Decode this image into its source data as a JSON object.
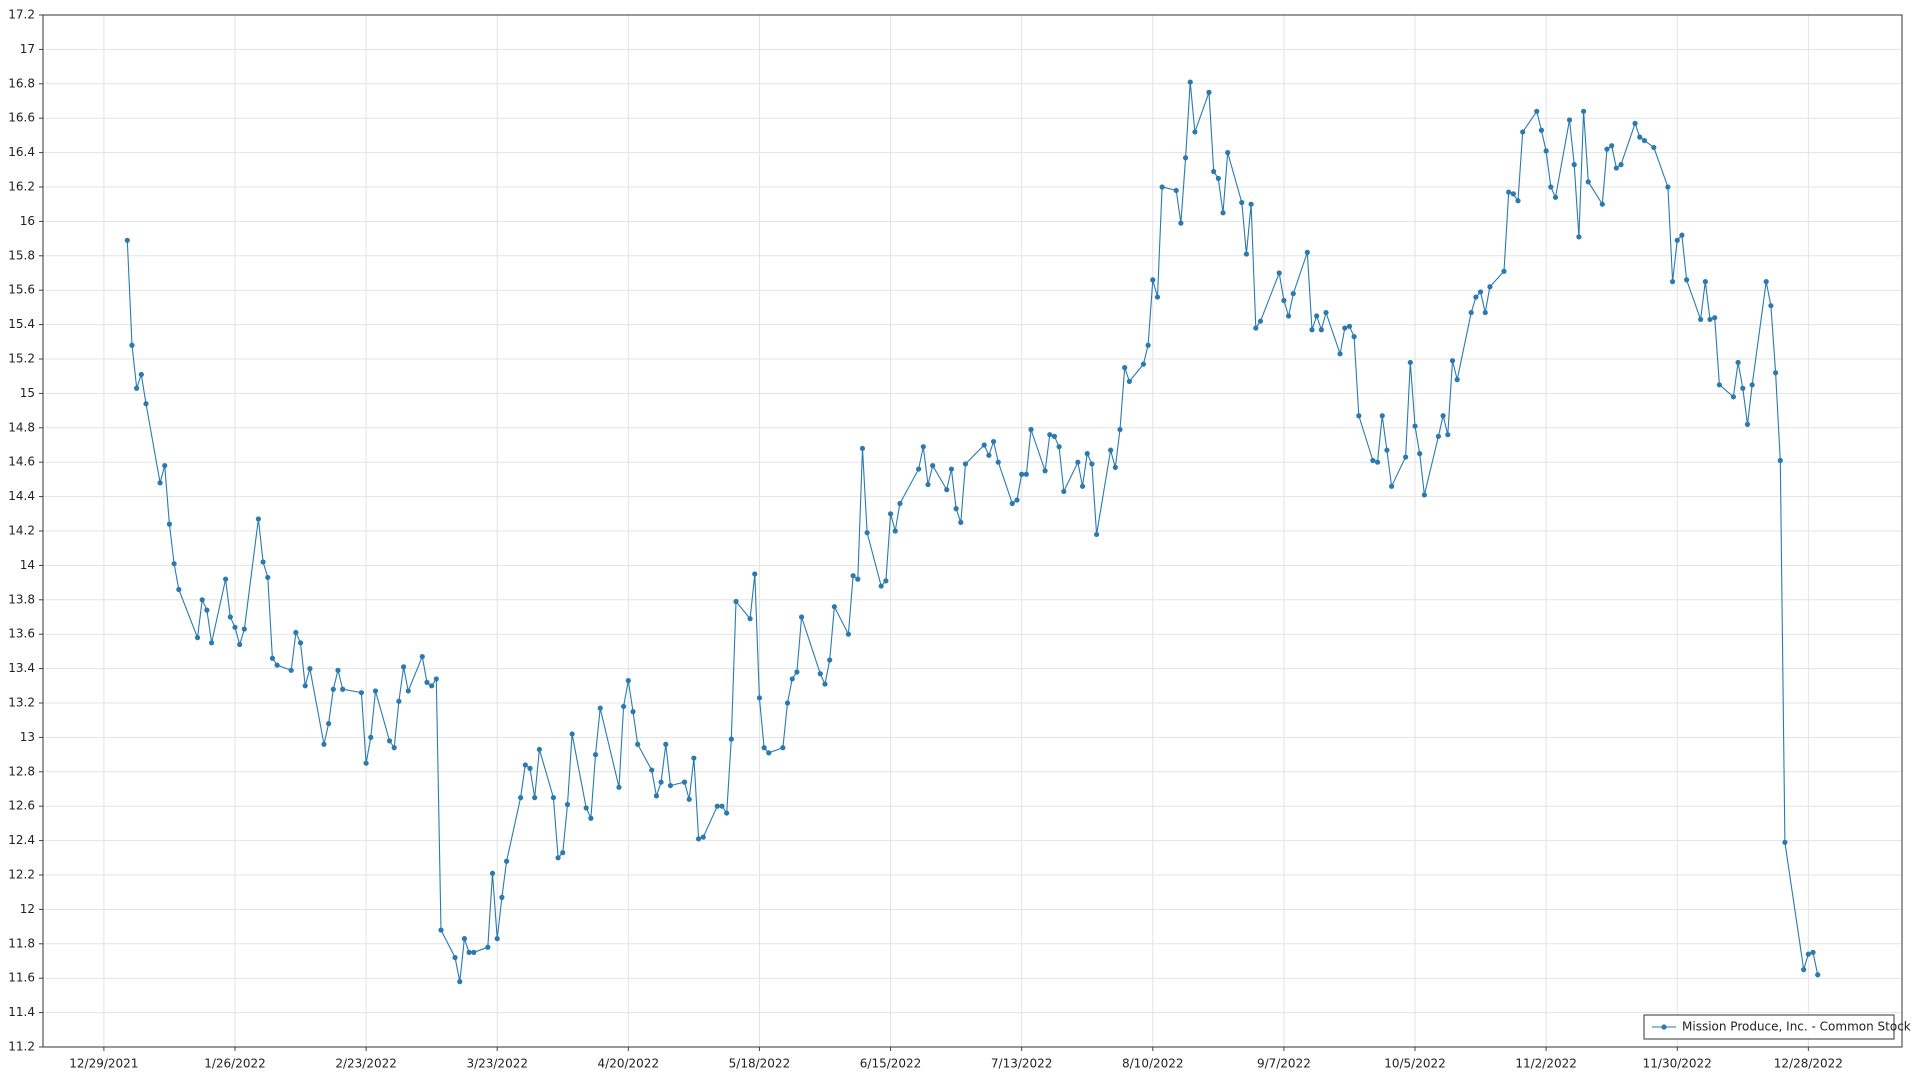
{
  "chart_data": {
    "type": "line",
    "x": [
      "1/3/2022",
      "1/4/2022",
      "1/5/2022",
      "1/6/2022",
      "1/7/2022",
      "1/10/2022",
      "1/11/2022",
      "1/12/2022",
      "1/13/2022",
      "1/14/2022",
      "1/18/2022",
      "1/19/2022",
      "1/20/2022",
      "1/21/2022",
      "1/24/2022",
      "1/25/2022",
      "1/26/2022",
      "1/27/2022",
      "1/28/2022",
      "1/31/2022",
      "2/1/2022",
      "2/2/2022",
      "2/3/2022",
      "2/4/2022",
      "2/7/2022",
      "2/8/2022",
      "2/9/2022",
      "2/10/2022",
      "2/11/2022",
      "2/14/2022",
      "2/15/2022",
      "2/16/2022",
      "2/17/2022",
      "2/18/2022",
      "2/22/2022",
      "2/23/2022",
      "2/24/2022",
      "2/25/2022",
      "2/28/2022",
      "3/1/2022",
      "3/2/2022",
      "3/3/2022",
      "3/4/2022",
      "3/7/2022",
      "3/8/2022",
      "3/9/2022",
      "3/10/2022",
      "3/11/2022",
      "3/14/2022",
      "3/15/2022",
      "3/16/2022",
      "3/17/2022",
      "3/18/2022",
      "3/21/2022",
      "3/22/2022",
      "3/23/2022",
      "3/24/2022",
      "3/25/2022",
      "3/28/2022",
      "3/29/2022",
      "3/30/2022",
      "3/31/2022",
      "4/1/2022",
      "4/4/2022",
      "4/5/2022",
      "4/6/2022",
      "4/7/2022",
      "4/8/2022",
      "4/11/2022",
      "4/12/2022",
      "4/13/2022",
      "4/14/2022",
      "4/18/2022",
      "4/19/2022",
      "4/20/2022",
      "4/21/2022",
      "4/22/2022",
      "4/25/2022",
      "4/26/2022",
      "4/27/2022",
      "4/28/2022",
      "4/29/2022",
      "5/2/2022",
      "5/3/2022",
      "5/4/2022",
      "5/5/2022",
      "5/6/2022",
      "5/9/2022",
      "5/10/2022",
      "5/11/2022",
      "5/12/2022",
      "5/13/2022",
      "5/16/2022",
      "5/17/2022",
      "5/18/2022",
      "5/19/2022",
      "5/20/2022",
      "5/23/2022",
      "5/24/2022",
      "5/25/2022",
      "5/26/2022",
      "5/27/2022",
      "5/31/2022",
      "6/1/2022",
      "6/2/2022",
      "6/3/2022",
      "6/6/2022",
      "6/7/2022",
      "6/8/2022",
      "6/9/2022",
      "6/10/2022",
      "6/13/2022",
      "6/14/2022",
      "6/15/2022",
      "6/16/2022",
      "6/17/2022",
      "6/21/2022",
      "6/22/2022",
      "6/23/2022",
      "6/24/2022",
      "6/27/2022",
      "6/28/2022",
      "6/29/2022",
      "6/30/2022",
      "7/1/2022",
      "7/5/2022",
      "7/6/2022",
      "7/7/2022",
      "7/8/2022",
      "7/11/2022",
      "7/12/2022",
      "7/13/2022",
      "7/14/2022",
      "7/15/2022",
      "7/18/2022",
      "7/19/2022",
      "7/20/2022",
      "7/21/2022",
      "7/22/2022",
      "7/25/2022",
      "7/26/2022",
      "7/27/2022",
      "7/28/2022",
      "7/29/2022",
      "8/1/2022",
      "8/2/2022",
      "8/3/2022",
      "8/4/2022",
      "8/5/2022",
      "8/8/2022",
      "8/9/2022",
      "8/10/2022",
      "8/11/2022",
      "8/12/2022",
      "8/15/2022",
      "8/16/2022",
      "8/17/2022",
      "8/18/2022",
      "8/19/2022",
      "8/22/2022",
      "8/23/2022",
      "8/24/2022",
      "8/25/2022",
      "8/26/2022",
      "8/29/2022",
      "8/30/2022",
      "8/31/2022",
      "9/1/2022",
      "9/2/2022",
      "9/6/2022",
      "9/7/2022",
      "9/8/2022",
      "9/9/2022",
      "9/12/2022",
      "9/13/2022",
      "9/14/2022",
      "9/15/2022",
      "9/16/2022",
      "9/19/2022",
      "9/20/2022",
      "9/21/2022",
      "9/22/2022",
      "9/23/2022",
      "9/26/2022",
      "9/27/2022",
      "9/28/2022",
      "9/29/2022",
      "9/30/2022",
      "10/3/2022",
      "10/4/2022",
      "10/5/2022",
      "10/6/2022",
      "10/7/2022",
      "10/10/2022",
      "10/11/2022",
      "10/12/2022",
      "10/13/2022",
      "10/14/2022",
      "10/17/2022",
      "10/18/2022",
      "10/19/2022",
      "10/20/2022",
      "10/21/2022",
      "10/24/2022",
      "10/25/2022",
      "10/26/2022",
      "10/27/2022",
      "10/28/2022",
      "10/31/2022",
      "11/1/2022",
      "11/2/2022",
      "11/3/2022",
      "11/4/2022",
      "11/7/2022",
      "11/8/2022",
      "11/9/2022",
      "11/10/2022",
      "11/11/2022",
      "11/14/2022",
      "11/15/2022",
      "11/16/2022",
      "11/17/2022",
      "11/18/2022",
      "11/21/2022",
      "11/22/2022",
      "11/23/2022",
      "11/25/2022",
      "11/28/2022",
      "11/29/2022",
      "11/30/2022",
      "12/1/2022",
      "12/2/2022",
      "12/5/2022",
      "12/6/2022",
      "12/7/2022",
      "12/8/2022",
      "12/9/2022",
      "12/12/2022",
      "12/13/2022",
      "12/14/2022",
      "12/15/2022",
      "12/16/2022",
      "12/19/2022",
      "12/20/2022",
      "12/21/2022",
      "12/22/2022",
      "12/23/2022",
      "12/27/2022",
      "12/28/2022",
      "12/29/2022",
      "12/30/2022"
    ],
    "series": [
      {
        "name": "Mission Produce, Inc. - Common Stock",
        "color": "#2a7ab0",
        "values": [
          15.89,
          15.28,
          15.03,
          15.11,
          14.94,
          14.48,
          14.58,
          14.24,
          14.01,
          13.86,
          13.58,
          13.8,
          13.74,
          13.55,
          13.92,
          13.7,
          13.64,
          13.54,
          13.63,
          14.27,
          14.02,
          13.93,
          13.46,
          13.42,
          13.39,
          13.61,
          13.55,
          13.3,
          13.4,
          12.96,
          13.08,
          13.28,
          13.39,
          13.28,
          13.26,
          12.85,
          13.0,
          13.27,
          12.98,
          12.94,
          13.21,
          13.41,
          13.27,
          13.47,
          13.32,
          13.3,
          13.34,
          11.88,
          11.72,
          11.58,
          11.83,
          11.75,
          11.75,
          11.78,
          12.21,
          11.83,
          12.07,
          12.28,
          12.65,
          12.84,
          12.82,
          12.65,
          12.93,
          12.65,
          12.3,
          12.33,
          12.61,
          13.02,
          12.59,
          12.53,
          12.9,
          13.17,
          12.71,
          13.18,
          13.33,
          13.15,
          12.96,
          12.81,
          12.66,
          12.74,
          12.96,
          12.72,
          12.74,
          12.64,
          12.88,
          12.41,
          12.42,
          12.6,
          12.6,
          12.56,
          12.99,
          13.79,
          13.69,
          13.95,
          13.23,
          12.94,
          12.91,
          12.94,
          13.2,
          13.34,
          13.38,
          13.7,
          13.37,
          13.31,
          13.45,
          13.76,
          13.6,
          13.94,
          13.92,
          14.68,
          14.19,
          13.88,
          13.91,
          14.3,
          14.2,
          14.36,
          14.56,
          14.69,
          14.47,
          14.58,
          14.44,
          14.56,
          14.33,
          14.25,
          14.59,
          14.7,
          14.64,
          14.72,
          14.6,
          14.36,
          14.38,
          14.53,
          14.53,
          14.79,
          14.55,
          14.76,
          14.75,
          14.69,
          14.43,
          14.6,
          14.46,
          14.65,
          14.59,
          14.18,
          14.67,
          14.57,
          14.79,
          15.15,
          15.07,
          15.17,
          15.28,
          15.66,
          15.56,
          16.2,
          16.18,
          15.99,
          16.37,
          16.81,
          16.52,
          16.75,
          16.29,
          16.25,
          16.05,
          16.4,
          16.11,
          15.81,
          16.1,
          15.38,
          15.42,
          15.7,
          15.54,
          15.45,
          15.58,
          15.82,
          15.37,
          15.45,
          15.37,
          15.47,
          15.23,
          15.38,
          15.39,
          15.33,
          14.87,
          14.61,
          14.6,
          14.87,
          14.67,
          14.46,
          14.63,
          15.18,
          14.81,
          14.65,
          14.41,
          14.75,
          14.87,
          14.76,
          15.19,
          15.08,
          15.47,
          15.56,
          15.59,
          15.47,
          15.62,
          15.71,
          16.17,
          16.16,
          16.12,
          16.52,
          16.64,
          16.53,
          16.41,
          16.2,
          16.14,
          16.59,
          16.33,
          15.91,
          16.64,
          16.23,
          16.1,
          16.42,
          16.44,
          16.31,
          16.33,
          16.57,
          16.49,
          16.47,
          16.43,
          16.2,
          15.65,
          15.89,
          15.92,
          15.66,
          15.43,
          15.65,
          15.43,
          15.44,
          15.05,
          14.98,
          15.18,
          15.03,
          14.82,
          15.05,
          15.65,
          15.51,
          15.12,
          14.61,
          12.39,
          11.65,
          11.74,
          11.75,
          11.62
        ]
      }
    ],
    "xlim": [
      "12/16/2021",
      "1/17/2023"
    ],
    "xticks": [
      "12/29/2021",
      "1/26/2022",
      "2/23/2022",
      "3/23/2022",
      "4/20/2022",
      "5/18/2022",
      "6/15/2022",
      "7/13/2022",
      "8/10/2022",
      "9/7/2022",
      "10/5/2022",
      "11/2/2022",
      "11/30/2022",
      "12/28/2022"
    ],
    "ylim": [
      11.2,
      17.2
    ],
    "yticks": [
      11.2,
      11.4,
      11.6,
      11.8,
      12,
      12.2,
      12.4,
      12.6,
      12.8,
      13,
      13.2,
      13.4,
      13.6,
      13.8,
      14,
      14.2,
      14.4,
      14.6,
      14.8,
      15,
      15.2,
      15.4,
      15.6,
      15.8,
      16,
      16.2,
      16.4,
      16.6,
      16.8,
      17,
      17.2
    ],
    "grid": true,
    "legend": "lower right"
  }
}
